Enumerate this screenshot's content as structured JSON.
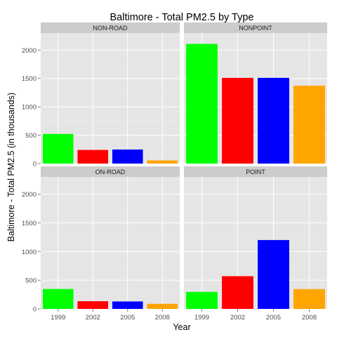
{
  "chart_data": {
    "type": "bar",
    "title": "Baltimore - Total PM2.5 by Type",
    "xlabel": "Year",
    "ylabel": "Baltimore - Total PM2.5 (in thousands)",
    "categories": [
      "1999",
      "2002",
      "2005",
      "2008"
    ],
    "ylim": [
      0,
      2300
    ],
    "yticks": [
      0,
      500,
      1000,
      1500,
      2000
    ],
    "grid": true,
    "facets_layout": "2x2",
    "bar_colors": [
      "#00ff00",
      "#ff0000",
      "#0000ff",
      "#ffa500"
    ],
    "panel_background": "#e5e5e5",
    "strip_background": "#cccccc",
    "facets": [
      {
        "label": "NON-ROAD",
        "values": [
          522,
          241,
          248,
          55
        ]
      },
      {
        "label": "NONPOINT",
        "values": [
          2108,
          1510,
          1510,
          1373
        ]
      },
      {
        "label": "ON-ROAD",
        "values": [
          347,
          134,
          130,
          89
        ]
      },
      {
        "label": "POINT",
        "values": [
          297,
          570,
          1200,
          345
        ]
      }
    ]
  }
}
